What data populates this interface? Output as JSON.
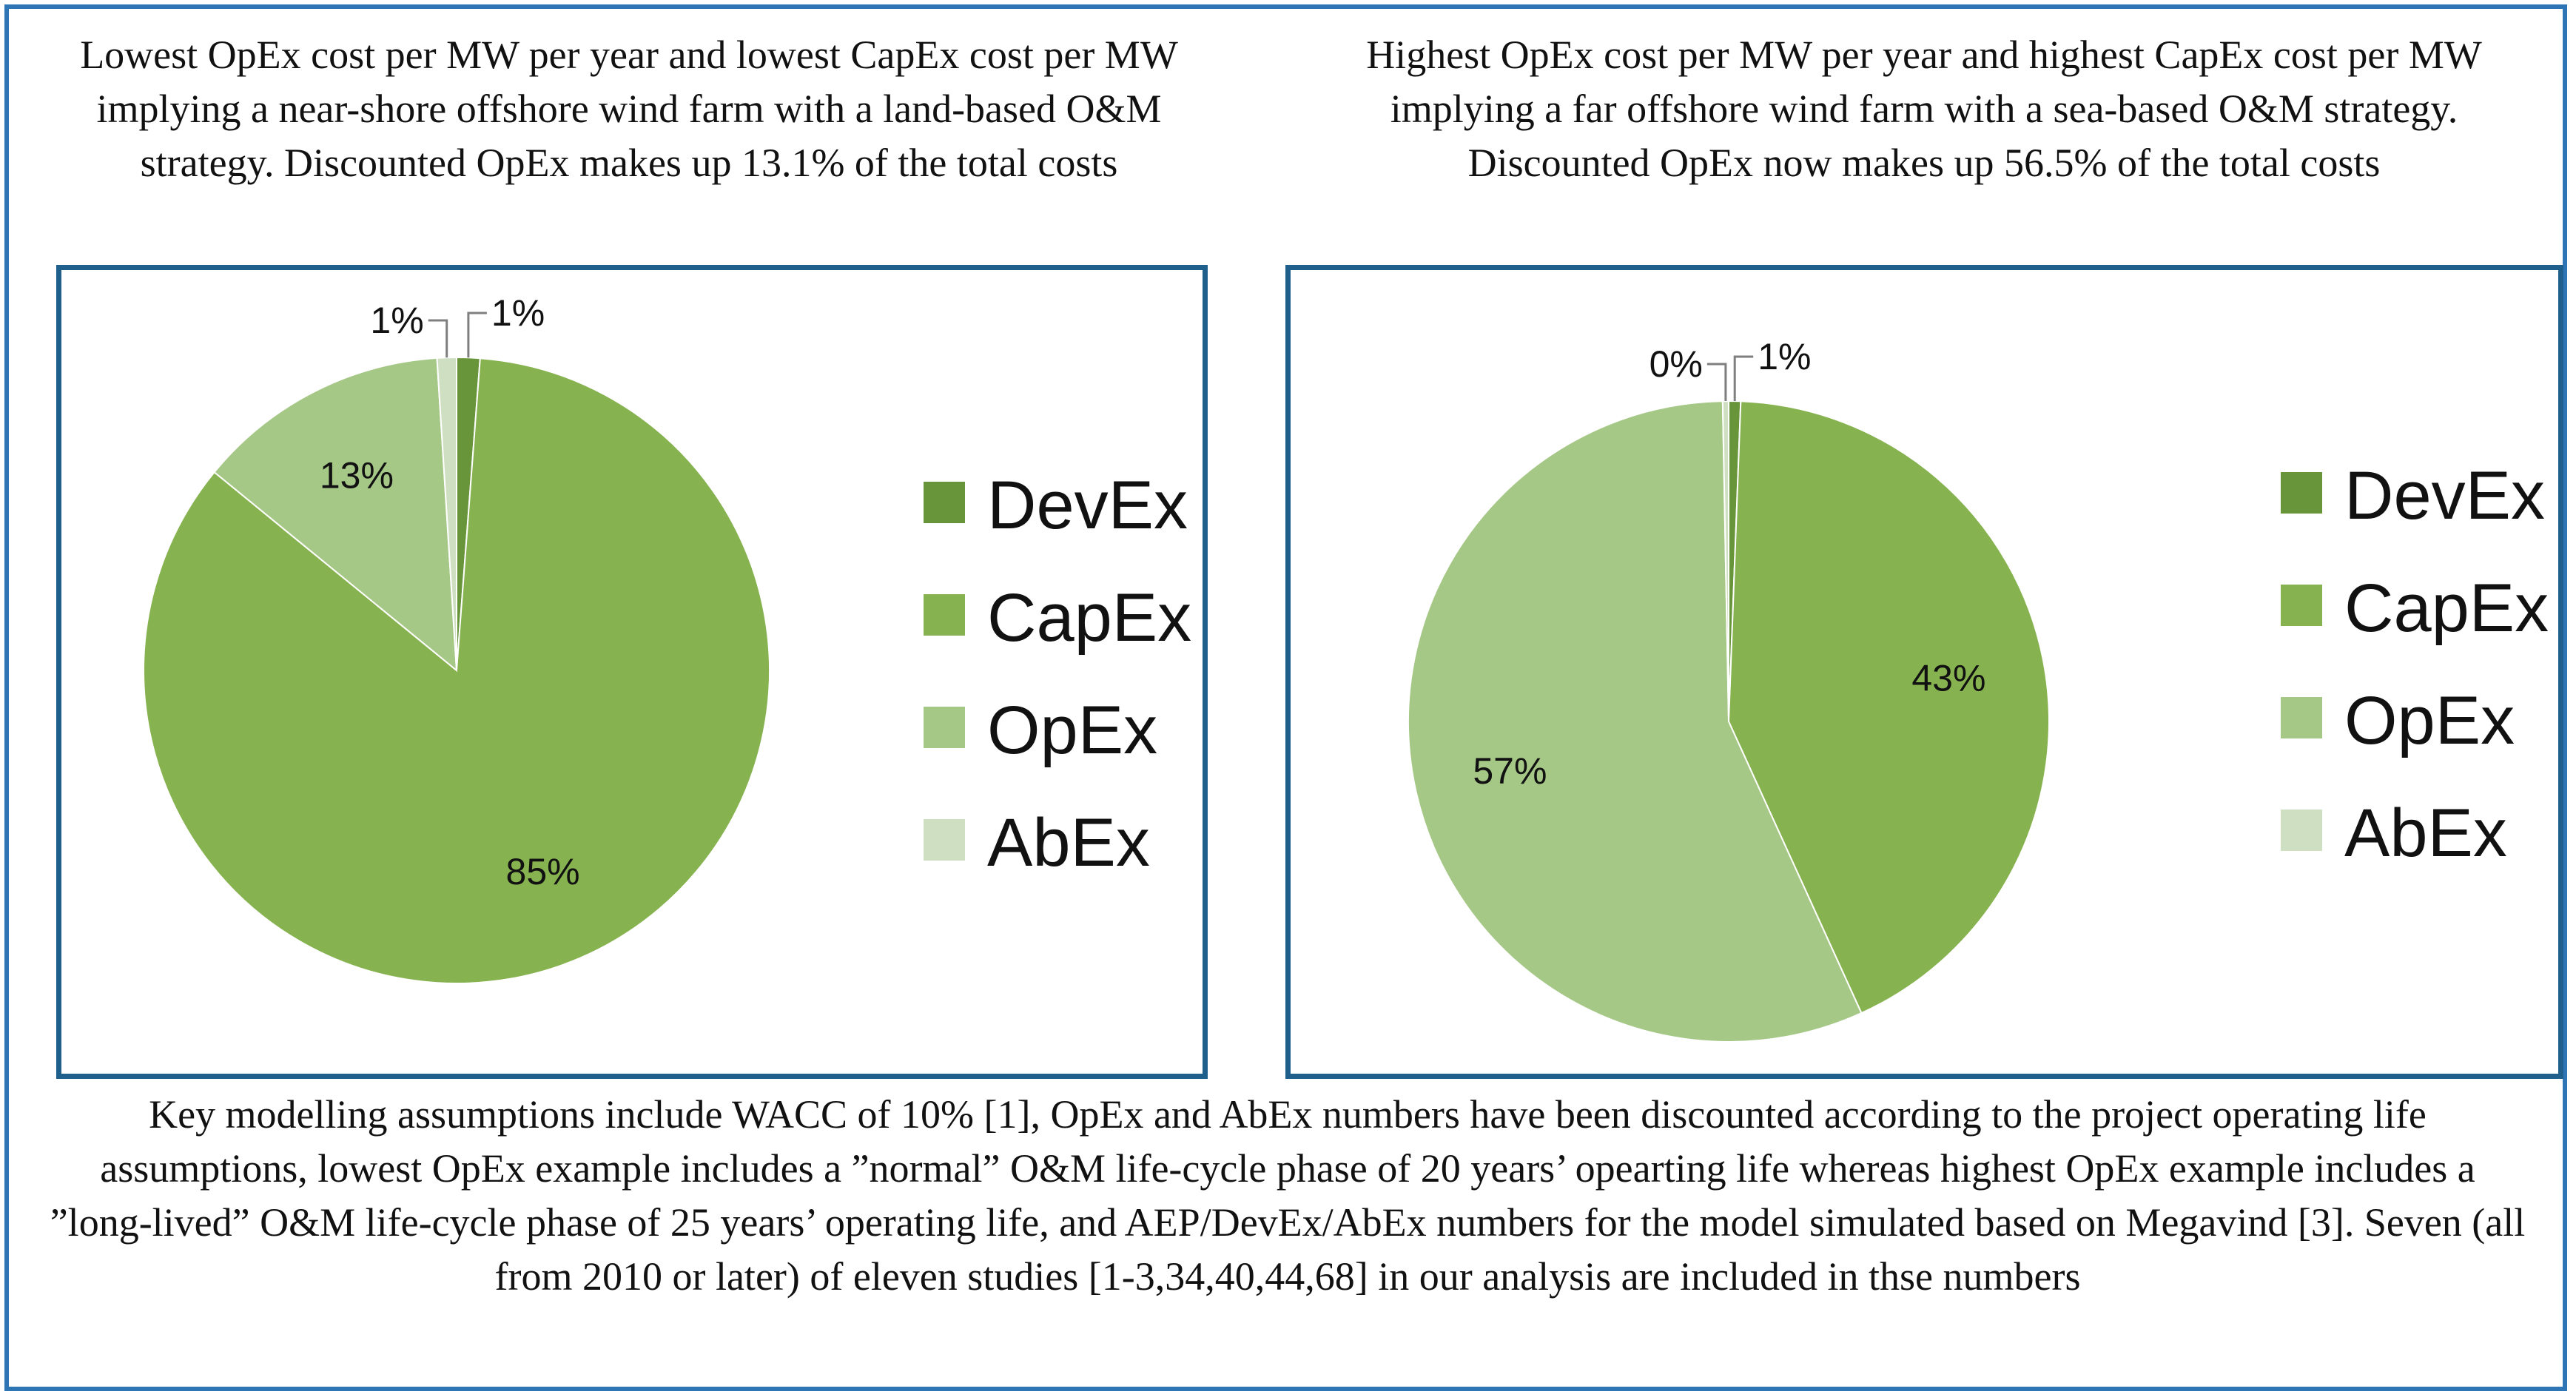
{
  "chart_data": [
    {
      "type": "pie",
      "title": "Lowest OpEx cost per MW per year and lowest CapEx cost per MW implying a near-shore offshore wind farm with a land-based O&M strategy. Discounted OpEx makes up 13.1% of the total costs",
      "categories": [
        "DevEx",
        "CapEx",
        "OpEx",
        "AbEx"
      ],
      "values": [
        1.2,
        84.8,
        13.1,
        1.0
      ],
      "labels": [
        "1%",
        "85%",
        "13%",
        "1%"
      ],
      "colors": [
        "#68943a",
        "#86b24f",
        "#a6c887",
        "#cfe0c2"
      ],
      "legend": "right"
    },
    {
      "type": "pie",
      "title": "Highest OpEx cost per MW per year and highest CapEx cost per MW implying a far offshore wind farm with a sea-based O&M strategy. Discounted OpEx now makes up 56.5% of the total costs",
      "categories": [
        "DevEx",
        "CapEx",
        "OpEx",
        "AbEx"
      ],
      "values": [
        0.6,
        42.6,
        56.5,
        0.3
      ],
      "labels": [
        "1%",
        "43%",
        "57%",
        "0%"
      ],
      "colors": [
        "#68943a",
        "#86b24f",
        "#a6c887",
        "#cfe0c2"
      ],
      "legend": "right"
    }
  ],
  "footnote": "Key modelling assumptions include WACC of 10% [1], OpEx and AbEx numbers have been discounted according to the project operating life assumptions, lowest OpEx example includes a ”normal” O&M life-cycle phase of 20 years’ opearting life whereas highest OpEx example includes a ”long-lived” O&M life-cycle phase of 25 years’ operating life, and AEP/DevEx/AbEx numbers for the model simulated based on Megavind [3]. Seven (all from 2010 or later) of eleven studies [1-3,34,40,44,68] in our analysis are included in thse numbers"
}
